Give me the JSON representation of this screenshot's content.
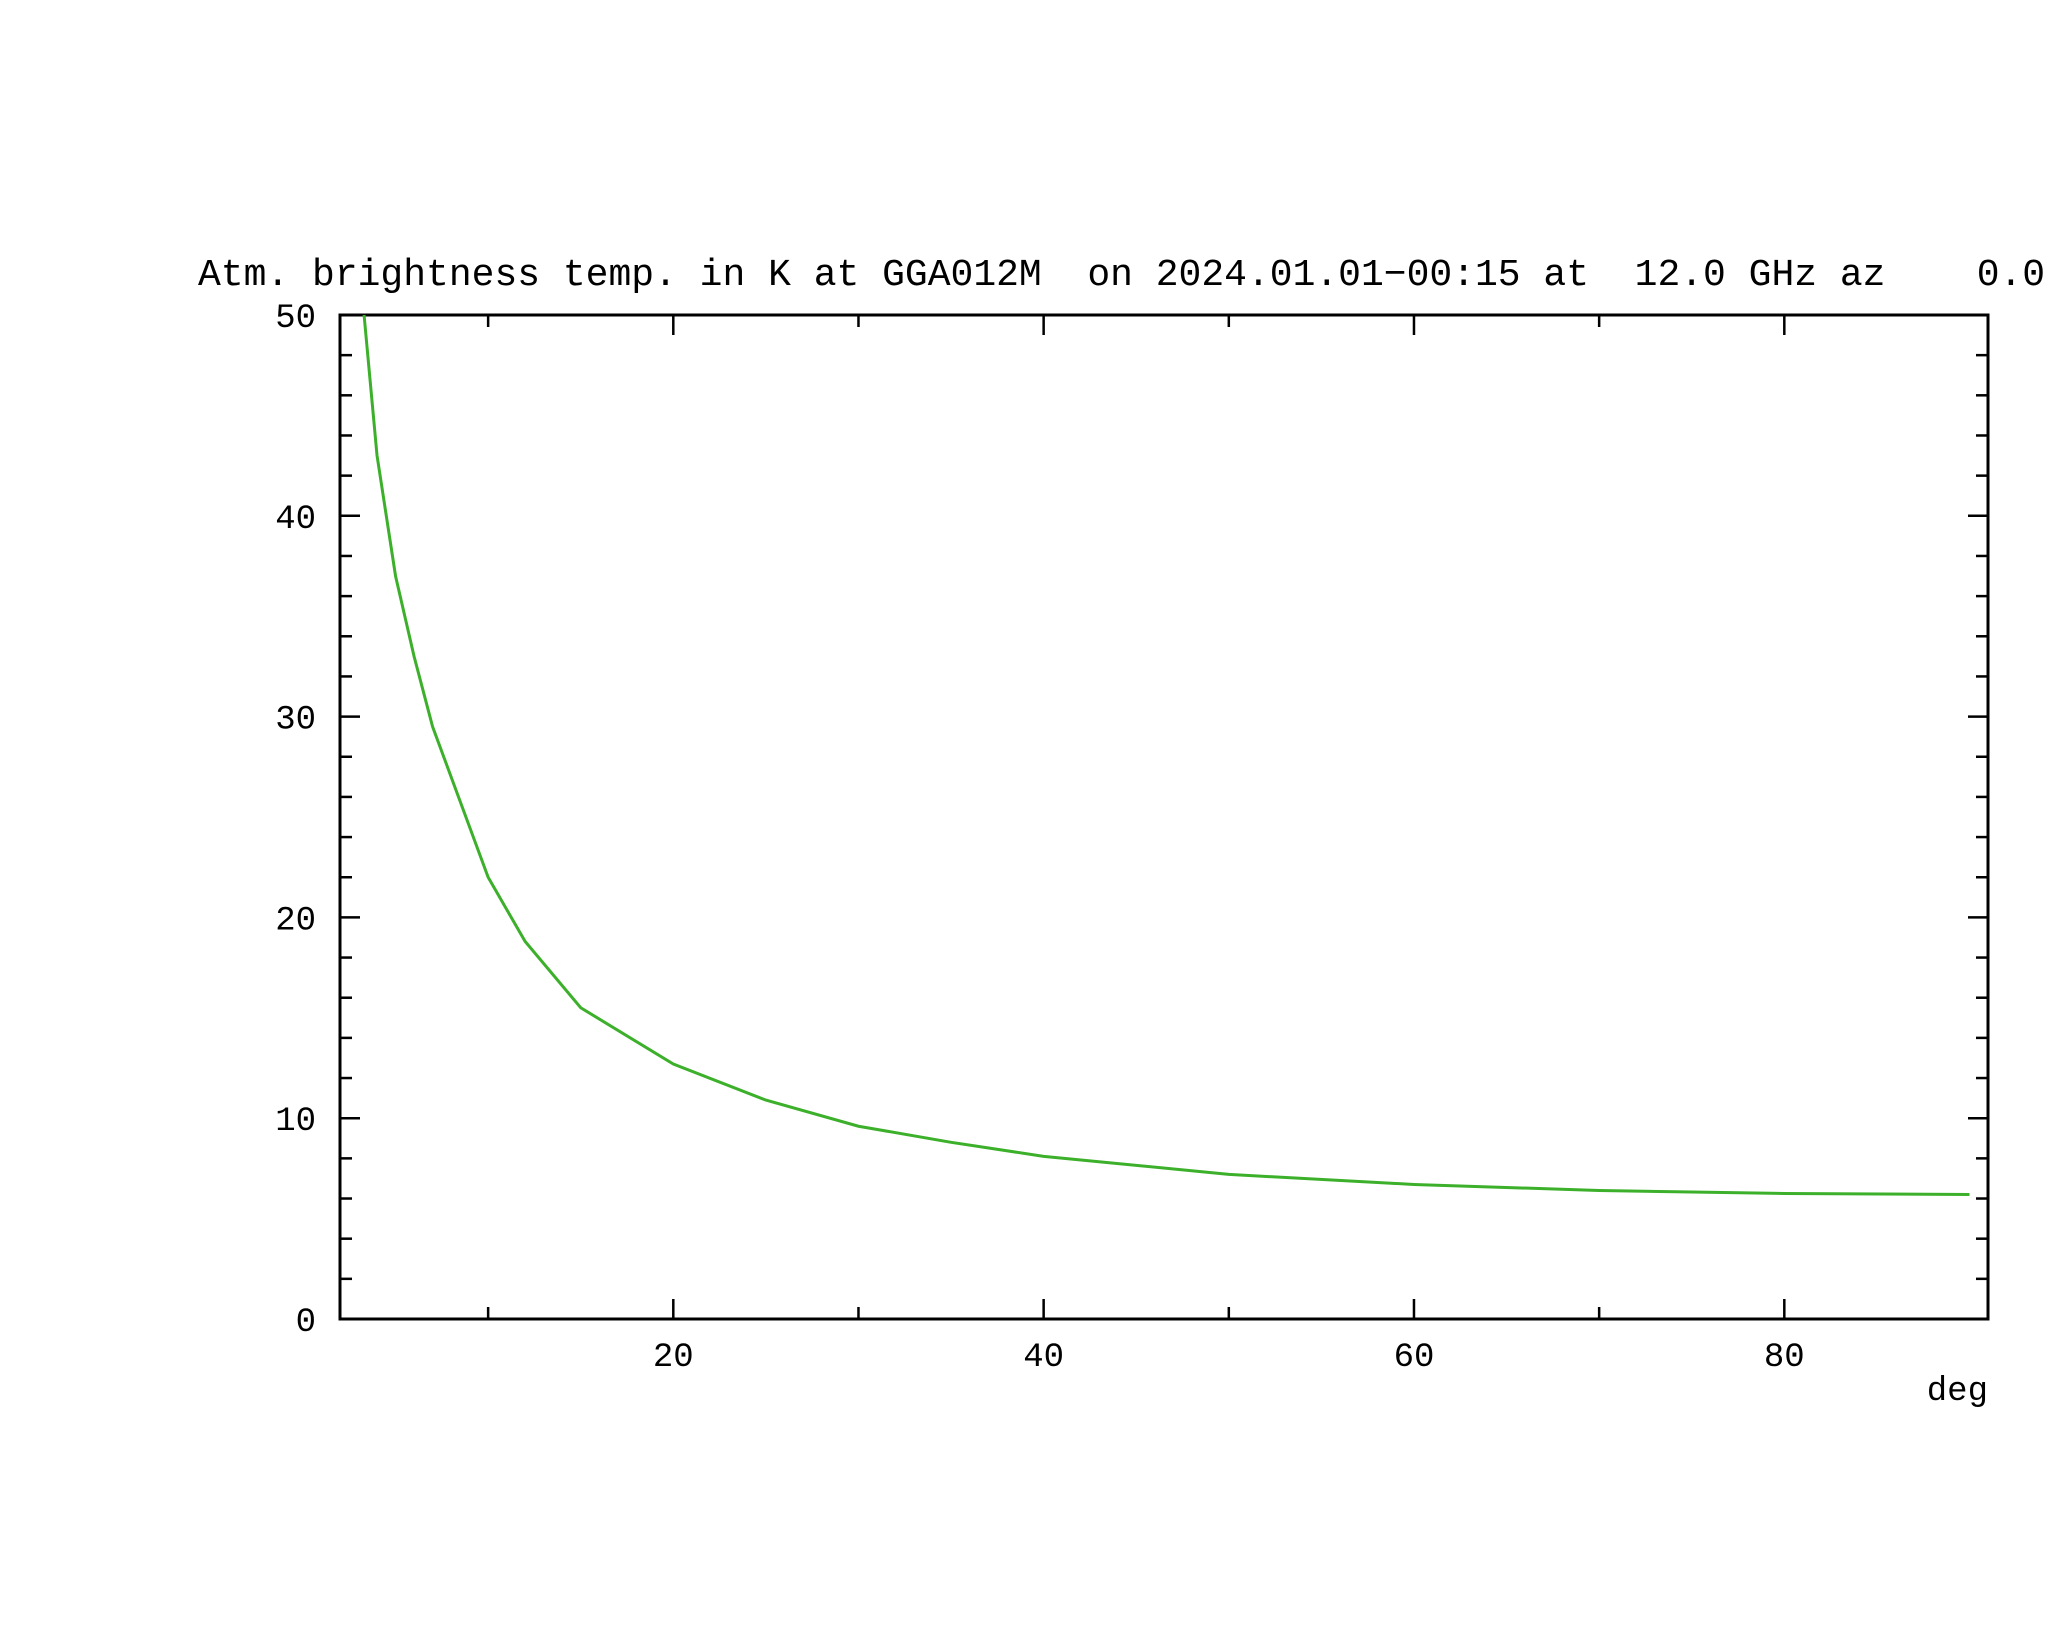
{
  "chart_data": {
    "type": "line",
    "title": "Atm. brightness temp. in K at GGA012M  on 2024.01.01−00:15 at  12.0 GHz az    0.0",
    "xlabel": "deg",
    "x": [
      3.3,
      4,
      5,
      6,
      7,
      8,
      10,
      12,
      15,
      20,
      25,
      30,
      35,
      40,
      50,
      60,
      70,
      80,
      90
    ],
    "series": [
      {
        "color": "#3cb02a",
        "values": [
          50,
          43,
          37,
          33,
          29.5,
          27,
          22,
          18.8,
          15.5,
          12.7,
          10.9,
          9.6,
          8.8,
          8.1,
          7.2,
          6.7,
          6.4,
          6.25,
          6.2
        ]
      }
    ],
    "xlim": [
      2,
      91
    ],
    "ylim": [
      0,
      50
    ],
    "xticks": [
      20,
      40,
      60,
      80
    ],
    "yticks": [
      0,
      10,
      20,
      30,
      40,
      50
    ],
    "xminorticks": [
      10,
      30,
      50,
      70
    ],
    "yminorticks": [
      2,
      4,
      6,
      8,
      12,
      14,
      16,
      18,
      22,
      24,
      26,
      28,
      32,
      34,
      36,
      38,
      42,
      44,
      46,
      48
    ],
    "grid": false
  }
}
